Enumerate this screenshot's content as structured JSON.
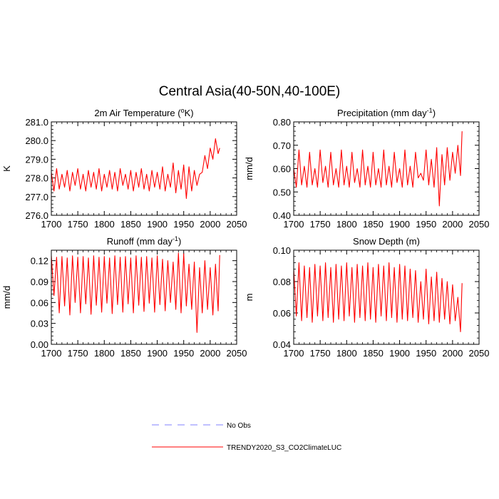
{
  "figure_title": "Central Asia(40-50N,40-100E)",
  "colors": {
    "model_line": "#ff0000",
    "obs_line": "#8080ff",
    "axis": "#000000"
  },
  "legend": {
    "obs_label": "No Obs",
    "model_label": "TRENDY2020_S3_CO2ClimateLUC"
  },
  "chart_data": [
    {
      "type": "line",
      "title": "2m Air Temperature (",
      "title_sup": "o",
      "title_suffix": "K)",
      "xlabel": "",
      "ylabel": "K",
      "xlim": [
        1700,
        2050
      ],
      "ylim": [
        276.0,
        281.0
      ],
      "xticks": [
        1700,
        1750,
        1800,
        1850,
        1900,
        1950,
        2000,
        2050
      ],
      "yticks": [
        "276.0",
        "277.0",
        "278.0",
        "279.0",
        "280.0",
        "281.0"
      ],
      "series": [
        {
          "name": "TRENDY2020_S3_CO2ClimateLUC",
          "x": [
            1700,
            1705,
            1710,
            1715,
            1720,
            1725,
            1730,
            1735,
            1740,
            1745,
            1750,
            1755,
            1760,
            1765,
            1770,
            1775,
            1780,
            1785,
            1790,
            1795,
            1800,
            1805,
            1810,
            1815,
            1820,
            1825,
            1830,
            1835,
            1840,
            1845,
            1850,
            1855,
            1860,
            1865,
            1870,
            1875,
            1880,
            1885,
            1890,
            1895,
            1900,
            1905,
            1910,
            1915,
            1920,
            1925,
            1930,
            1935,
            1940,
            1945,
            1950,
            1955,
            1960,
            1965,
            1970,
            1975,
            1980,
            1985,
            1990,
            1995,
            2000,
            2005,
            2010,
            2015,
            2018
          ],
          "values": [
            278.3,
            277.3,
            278.5,
            277.4,
            278.2,
            277.5,
            278.4,
            277.3,
            278.3,
            277.6,
            278.5,
            277.4,
            278.2,
            277.3,
            278.4,
            277.5,
            278.3,
            277.4,
            278.5,
            277.3,
            278.2,
            277.5,
            278.4,
            277.4,
            278.3,
            277.3,
            278.5,
            277.6,
            278.2,
            277.4,
            278.4,
            277.3,
            278.3,
            277.5,
            278.5,
            277.4,
            278.2,
            277.3,
            278.4,
            277.5,
            278.3,
            277.4,
            278.6,
            277.3,
            278.2,
            277.5,
            278.8,
            277.2,
            278.4,
            277.4,
            278.7,
            276.9,
            278.6,
            277.3,
            278.4,
            277.6,
            278.2,
            278.3,
            279.2,
            278.5,
            279.6,
            279.0,
            280.1,
            279.3,
            279.6
          ]
        }
      ]
    },
    {
      "type": "line",
      "title": "Precipitation (mm day",
      "title_sup": "-1",
      "title_suffix": ")",
      "xlabel": "",
      "ylabel": "mm/d",
      "xlim": [
        1700,
        2050
      ],
      "ylim": [
        0.4,
        0.8
      ],
      "xticks": [
        1700,
        1750,
        1800,
        1850,
        1900,
        1950,
        2000,
        2050
      ],
      "yticks": [
        "0.40",
        "0.50",
        "0.60",
        "0.70",
        "0.80"
      ],
      "series": [
        {
          "name": "TRENDY2020_S3_CO2ClimateLUC",
          "x": [
            1700,
            1705,
            1710,
            1715,
            1720,
            1725,
            1730,
            1735,
            1740,
            1745,
            1750,
            1755,
            1760,
            1765,
            1770,
            1775,
            1780,
            1785,
            1790,
            1795,
            1800,
            1805,
            1810,
            1815,
            1820,
            1825,
            1830,
            1835,
            1840,
            1845,
            1850,
            1855,
            1860,
            1865,
            1870,
            1875,
            1880,
            1885,
            1890,
            1895,
            1900,
            1905,
            1910,
            1915,
            1920,
            1925,
            1930,
            1935,
            1940,
            1945,
            1950,
            1955,
            1960,
            1965,
            1970,
            1975,
            1980,
            1985,
            1990,
            1995,
            2000,
            2005,
            2010,
            2015,
            2018
          ],
          "values": [
            0.6,
            0.52,
            0.68,
            0.53,
            0.61,
            0.52,
            0.67,
            0.53,
            0.6,
            0.52,
            0.68,
            0.54,
            0.61,
            0.52,
            0.67,
            0.53,
            0.6,
            0.52,
            0.68,
            0.53,
            0.61,
            0.52,
            0.67,
            0.54,
            0.6,
            0.52,
            0.68,
            0.53,
            0.61,
            0.52,
            0.67,
            0.53,
            0.6,
            0.52,
            0.68,
            0.53,
            0.61,
            0.52,
            0.67,
            0.54,
            0.6,
            0.52,
            0.68,
            0.53,
            0.61,
            0.52,
            0.67,
            0.56,
            0.58,
            0.55,
            0.68,
            0.53,
            0.64,
            0.52,
            0.69,
            0.44,
            0.66,
            0.53,
            0.69,
            0.55,
            0.67,
            0.58,
            0.7,
            0.57,
            0.76
          ]
        }
      ]
    },
    {
      "type": "line",
      "title": "Runoff (mm day",
      "title_sup": "-1",
      "title_suffix": ")",
      "xlabel": "",
      "ylabel": "mm/d",
      "xlim": [
        1700,
        2050
      ],
      "ylim": [
        0.0,
        0.135
      ],
      "xticks": [
        1700,
        1750,
        1800,
        1850,
        1900,
        1950,
        2000,
        2050
      ],
      "yticks": [
        "0.00",
        "0.03",
        "0.06",
        "0.09",
        "0.12"
      ],
      "ytick_values": [
        0.0,
        0.03,
        0.06,
        0.09,
        0.12
      ],
      "series": [
        {
          "name": "TRENDY2020_S3_CO2ClimateLUC",
          "x": [
            1700,
            1705,
            1710,
            1715,
            1720,
            1725,
            1730,
            1735,
            1740,
            1745,
            1750,
            1755,
            1760,
            1765,
            1770,
            1775,
            1780,
            1785,
            1790,
            1795,
            1800,
            1805,
            1810,
            1815,
            1820,
            1825,
            1830,
            1835,
            1840,
            1845,
            1850,
            1855,
            1860,
            1865,
            1870,
            1875,
            1880,
            1885,
            1890,
            1895,
            1900,
            1905,
            1910,
            1915,
            1920,
            1925,
            1930,
            1935,
            1940,
            1945,
            1950,
            1955,
            1960,
            1965,
            1970,
            1975,
            1980,
            1985,
            1990,
            1995,
            2000,
            2005,
            2010,
            2015,
            2018
          ],
          "values": [
            0.127,
            0.07,
            0.125,
            0.045,
            0.126,
            0.055,
            0.124,
            0.042,
            0.127,
            0.06,
            0.125,
            0.045,
            0.126,
            0.058,
            0.124,
            0.043,
            0.127,
            0.056,
            0.125,
            0.046,
            0.126,
            0.059,
            0.124,
            0.044,
            0.127,
            0.057,
            0.125,
            0.046,
            0.126,
            0.058,
            0.124,
            0.045,
            0.127,
            0.056,
            0.125,
            0.047,
            0.126,
            0.059,
            0.124,
            0.046,
            0.127,
            0.057,
            0.122,
            0.048,
            0.12,
            0.06,
            0.118,
            0.05,
            0.131,
            0.045,
            0.13,
            0.055,
            0.115,
            0.05,
            0.118,
            0.017,
            0.11,
            0.045,
            0.12,
            0.05,
            0.11,
            0.042,
            0.115,
            0.048,
            0.128
          ]
        }
      ]
    },
    {
      "type": "line",
      "title": "Snow Depth (m)",
      "title_sup": "",
      "title_suffix": "",
      "xlabel": "",
      "ylabel": "m",
      "xlim": [
        1700,
        2050
      ],
      "ylim": [
        0.04,
        0.1
      ],
      "xticks": [
        1700,
        1750,
        1800,
        1850,
        1900,
        1950,
        2000,
        2050
      ],
      "yticks": [
        "0.04",
        "0.06",
        "0.08",
        "0.10"
      ],
      "ytick_values": [
        0.04,
        0.06,
        0.08,
        0.1
      ],
      "series": [
        {
          "name": "TRENDY2020_S3_CO2ClimateLUC",
          "x": [
            1700,
            1705,
            1710,
            1715,
            1720,
            1725,
            1730,
            1735,
            1740,
            1745,
            1750,
            1755,
            1760,
            1765,
            1770,
            1775,
            1780,
            1785,
            1790,
            1795,
            1800,
            1805,
            1810,
            1815,
            1820,
            1825,
            1830,
            1835,
            1840,
            1845,
            1850,
            1855,
            1860,
            1865,
            1870,
            1875,
            1880,
            1885,
            1890,
            1895,
            1900,
            1905,
            1910,
            1915,
            1920,
            1925,
            1930,
            1935,
            1940,
            1945,
            1950,
            1955,
            1960,
            1965,
            1970,
            1975,
            1980,
            1985,
            1990,
            1995,
            2000,
            2005,
            2010,
            2015,
            2018
          ],
          "values": [
            0.088,
            0.058,
            0.092,
            0.055,
            0.09,
            0.057,
            0.089,
            0.054,
            0.091,
            0.058,
            0.09,
            0.055,
            0.092,
            0.057,
            0.089,
            0.054,
            0.091,
            0.056,
            0.09,
            0.055,
            0.092,
            0.058,
            0.089,
            0.054,
            0.091,
            0.057,
            0.09,
            0.055,
            0.092,
            0.056,
            0.089,
            0.054,
            0.091,
            0.058,
            0.09,
            0.055,
            0.092,
            0.057,
            0.089,
            0.054,
            0.091,
            0.056,
            0.09,
            0.055,
            0.088,
            0.057,
            0.087,
            0.054,
            0.08,
            0.056,
            0.088,
            0.053,
            0.083,
            0.055,
            0.086,
            0.054,
            0.082,
            0.056,
            0.08,
            0.053,
            0.078,
            0.055,
            0.07,
            0.048,
            0.079
          ]
        }
      ]
    }
  ]
}
